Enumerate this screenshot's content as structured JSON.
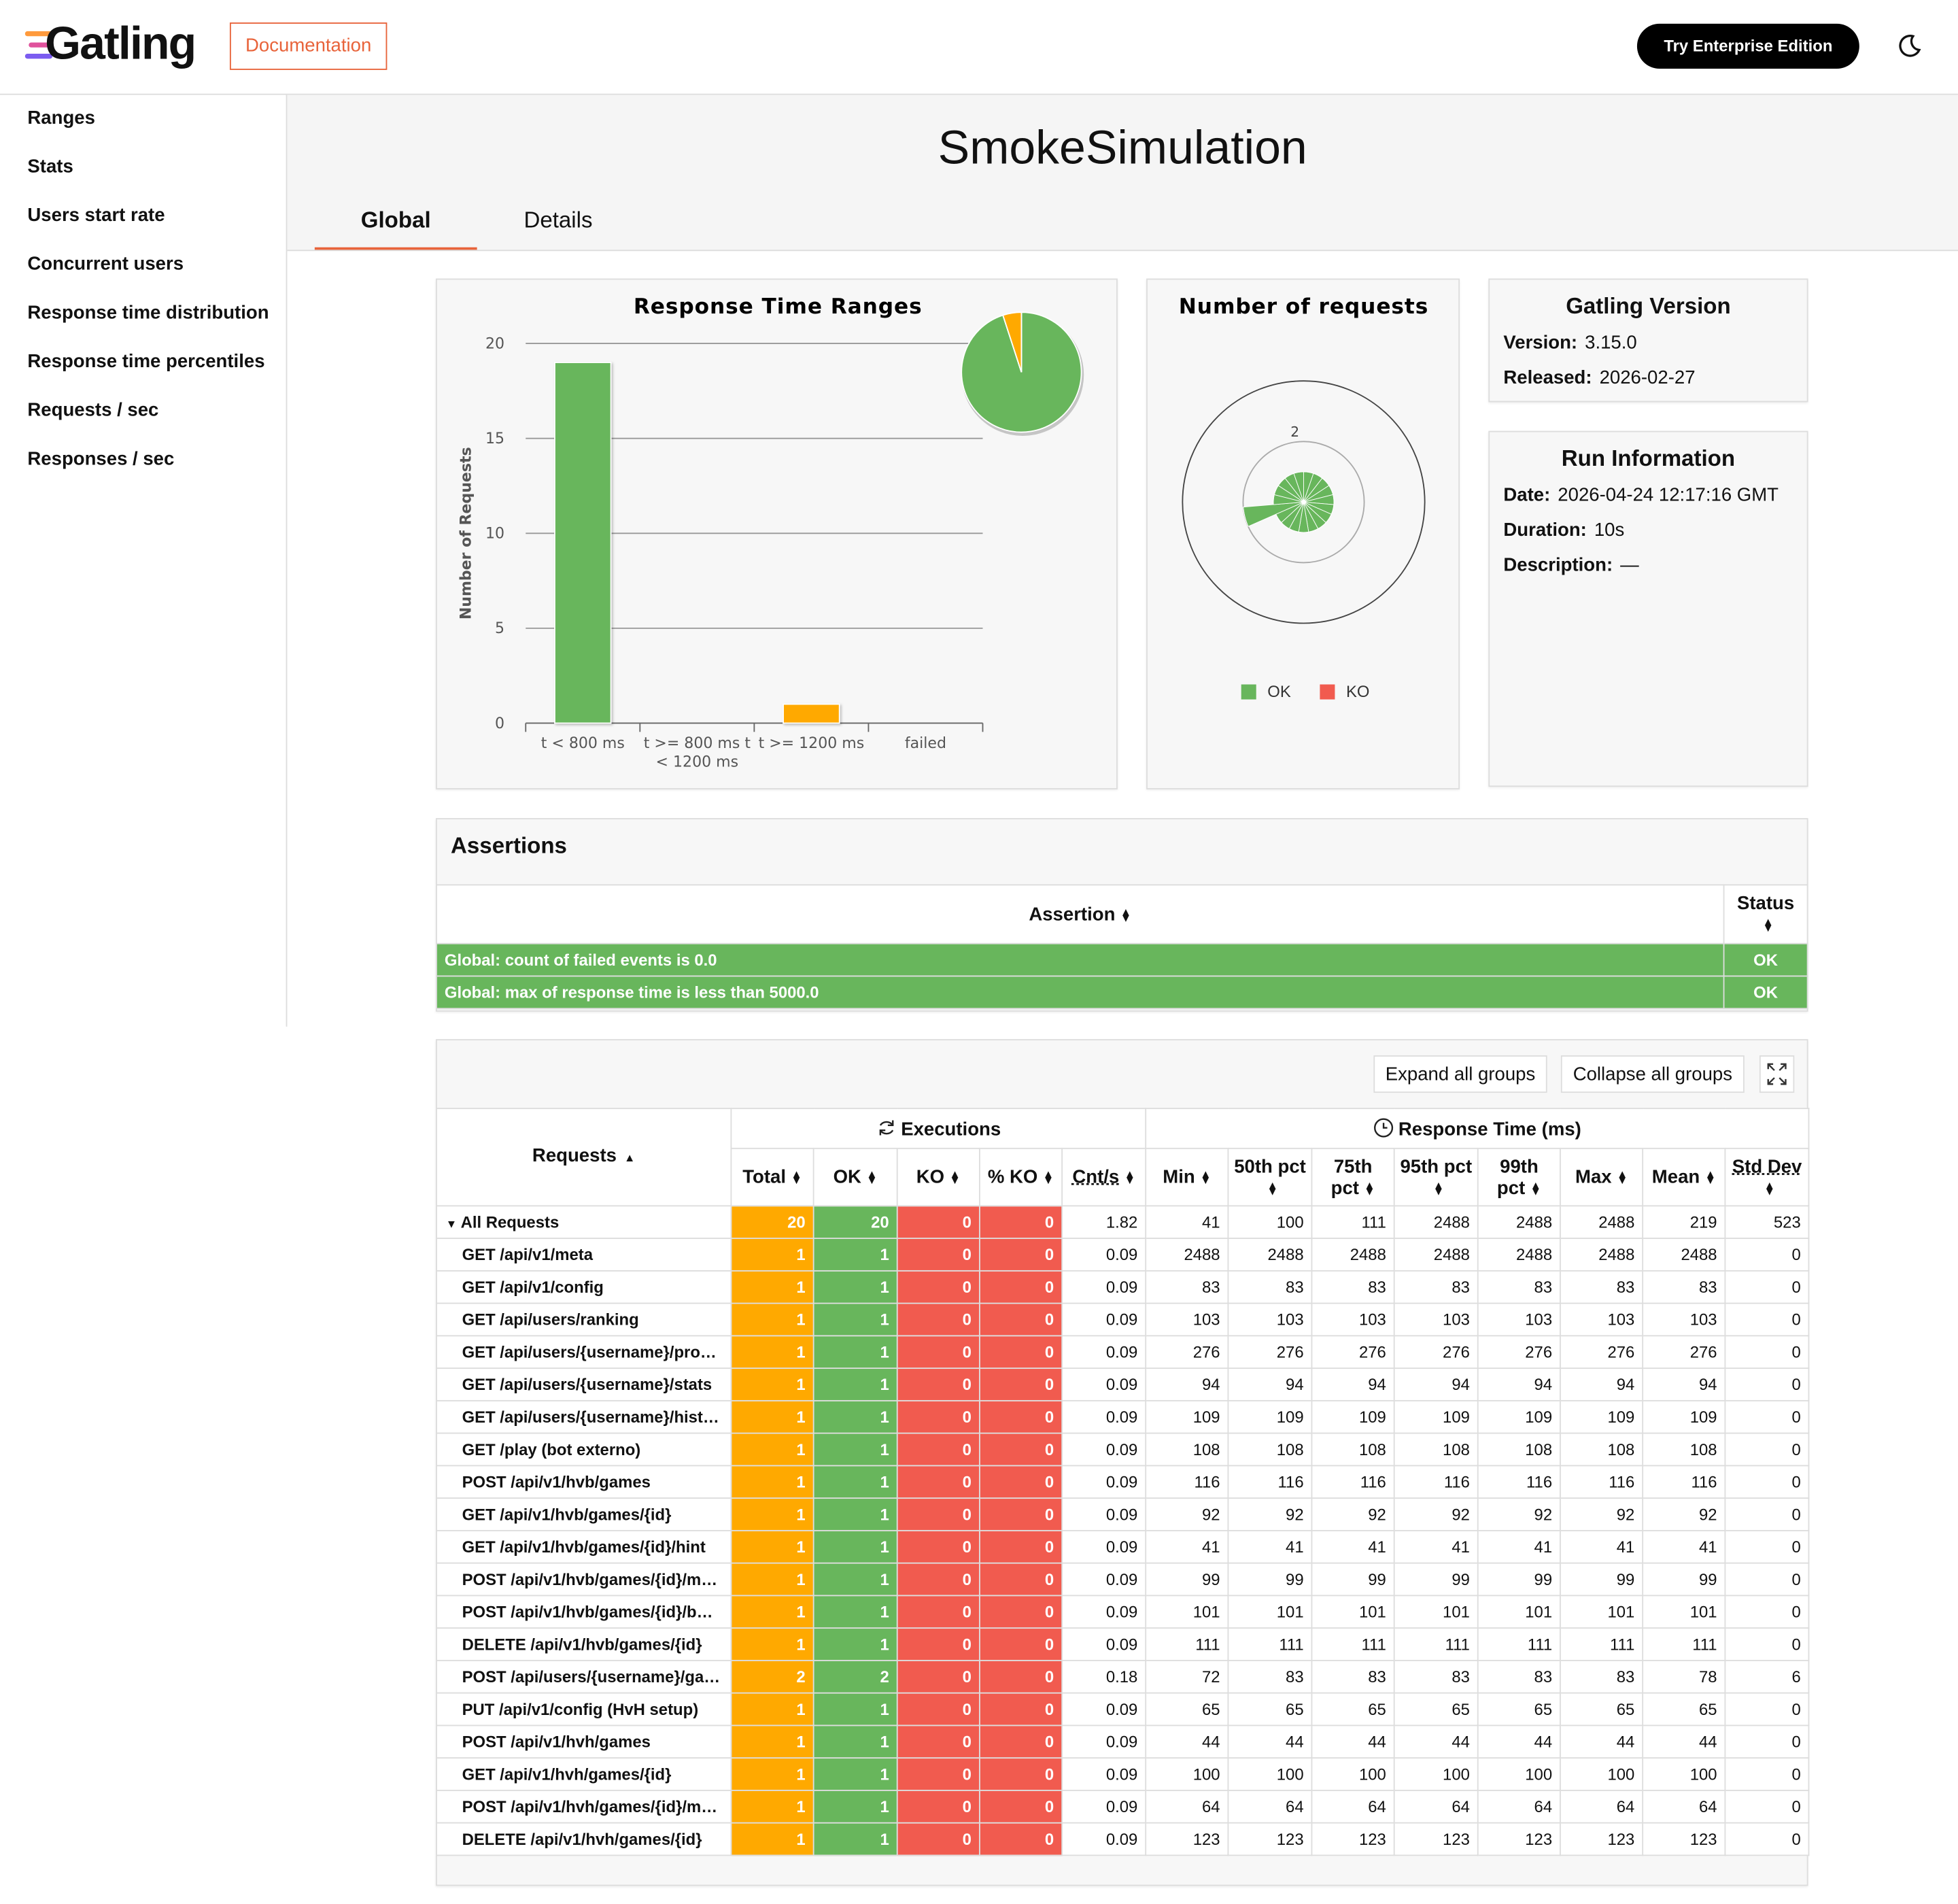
{
  "header": {
    "logo": "Gatling",
    "documentation": "Documentation",
    "enterprise": "Try Enterprise Edition"
  },
  "sidebar": [
    "Ranges",
    "Stats",
    "Users start rate",
    "Concurrent users",
    "Response time distribution",
    "Response time percentiles",
    "Requests / sec",
    "Responses / sec"
  ],
  "title": "SmokeSimulation",
  "tabs": [
    "Global",
    "Details"
  ],
  "chart_data": [
    {
      "type": "bar",
      "title": "Response Time Ranges",
      "y_label": "Number of Requests",
      "categories": [
        "t < 800 ms",
        "t >= 800 ms t < 1200 ms",
        "t >= 1200 ms",
        "failed"
      ],
      "values": [
        19,
        0,
        1,
        0
      ],
      "colors": [
        "#68b65c",
        "#ffdd00",
        "#ffa900",
        "#f15b4f"
      ],
      "ylim": [
        0,
        20
      ],
      "yticks": [
        0,
        5,
        10,
        15,
        20
      ],
      "grid": true,
      "inset_pie": true
    },
    {
      "type": "polar",
      "title": "Number of requests",
      "categories": [
        null,
        null,
        null,
        null,
        null,
        null,
        null,
        null,
        null,
        null,
        null,
        null,
        null,
        null,
        null,
        null,
        null,
        null,
        null
      ],
      "series": [
        {
          "name": "OK",
          "color": "#68b65c",
          "values": [
            1,
            1,
            1,
            1,
            1,
            1,
            1,
            1,
            1,
            1,
            1,
            1,
            1,
            2,
            1,
            1,
            1,
            1,
            1
          ]
        },
        {
          "name": "KO",
          "color": "#f15b4f",
          "values": [
            0,
            0,
            0,
            0,
            0,
            0,
            0,
            0,
            0,
            0,
            0,
            0,
            0,
            0,
            0,
            0,
            0,
            0,
            0
          ]
        }
      ],
      "rlim": [
        0,
        4
      ],
      "rticks": [
        0,
        2
      ]
    }
  ],
  "version_box": {
    "title": "Gatling Version",
    "rows": [
      [
        "Version:",
        "3.15.0"
      ],
      [
        "Released:",
        "2026-02-27"
      ]
    ]
  },
  "run_box": {
    "title": "Run Information",
    "rows": [
      [
        "Date:",
        "2026-04-24 12:17:16 GMT"
      ],
      [
        "Duration:",
        "10s"
      ],
      [
        "Description:",
        "—"
      ]
    ]
  },
  "assertions": {
    "title": "Assertions",
    "headers": [
      "Assertion",
      "Status"
    ],
    "rows": [
      [
        "Global: count of failed events is 0.0",
        "OK"
      ],
      [
        "Global: max of response time is less than 5000.0",
        "OK"
      ]
    ]
  },
  "stats": {
    "buttons": [
      "Expand all groups",
      "Collapse all groups"
    ],
    "first_header": "Requests",
    "groups": [
      "Executions",
      "Response Time (ms)"
    ],
    "columns": [
      "Total",
      "OK",
      "KO",
      "% KO",
      "Cnt/s",
      "Min",
      "50th pct",
      "75th pct",
      "95th pct",
      "99th pct",
      "Max",
      "Mean",
      "Std Dev"
    ],
    "rows": [
      {
        "name": "All Requests",
        "values": [
          20,
          20,
          0,
          0,
          1.82,
          41,
          100,
          111,
          2488,
          2488,
          2488,
          219,
          523
        ]
      },
      {
        "name": "GET /api/v1/meta",
        "values": [
          1,
          1,
          0,
          0,
          0.09,
          2488,
          2488,
          2488,
          2488,
          2488,
          2488,
          2488,
          0
        ]
      },
      {
        "name": "GET /api/v1/config",
        "values": [
          1,
          1,
          0,
          0,
          0.09,
          83,
          83,
          83,
          83,
          83,
          83,
          83,
          0
        ]
      },
      {
        "name": "GET /api/users/ranking",
        "values": [
          1,
          1,
          0,
          0,
          0.09,
          103,
          103,
          103,
          103,
          103,
          103,
          103,
          0
        ]
      },
      {
        "name": "GET /api/users/{username}/pro…",
        "values": [
          1,
          1,
          0,
          0,
          0.09,
          276,
          276,
          276,
          276,
          276,
          276,
          276,
          0
        ]
      },
      {
        "name": "GET /api/users/{username}/stats",
        "values": [
          1,
          1,
          0,
          0,
          0.09,
          94,
          94,
          94,
          94,
          94,
          94,
          94,
          0
        ]
      },
      {
        "name": "GET /api/users/{username}/hist…",
        "values": [
          1,
          1,
          0,
          0,
          0.09,
          109,
          109,
          109,
          109,
          109,
          109,
          109,
          0
        ]
      },
      {
        "name": "GET /play (bot externo)",
        "values": [
          1,
          1,
          0,
          0,
          0.09,
          108,
          108,
          108,
          108,
          108,
          108,
          108,
          0
        ]
      },
      {
        "name": "POST /api/v1/hvb/games",
        "values": [
          1,
          1,
          0,
          0,
          0.09,
          116,
          116,
          116,
          116,
          116,
          116,
          116,
          0
        ]
      },
      {
        "name": "GET /api/v1/hvb/games/{id}",
        "values": [
          1,
          1,
          0,
          0,
          0.09,
          92,
          92,
          92,
          92,
          92,
          92,
          92,
          0
        ]
      },
      {
        "name": "GET /api/v1/hvb/games/{id}/hint",
        "values": [
          1,
          1,
          0,
          0,
          0.09,
          41,
          41,
          41,
          41,
          41,
          41,
          41,
          0
        ]
      },
      {
        "name": "POST /api/v1/hvb/games/{id}/m…",
        "values": [
          1,
          1,
          0,
          0,
          0.09,
          99,
          99,
          99,
          99,
          99,
          99,
          99,
          0
        ]
      },
      {
        "name": "POST /api/v1/hvb/games/{id}/b…",
        "values": [
          1,
          1,
          0,
          0,
          0.09,
          101,
          101,
          101,
          101,
          101,
          101,
          101,
          0
        ]
      },
      {
        "name": "DELETE /api/v1/hvb/games/{id}",
        "values": [
          1,
          1,
          0,
          0,
          0.09,
          111,
          111,
          111,
          111,
          111,
          111,
          111,
          0
        ]
      },
      {
        "name": "POST /api/users/{username}/ga…",
        "values": [
          2,
          2,
          0,
          0,
          0.18,
          72,
          83,
          83,
          83,
          83,
          83,
          78,
          6
        ]
      },
      {
        "name": "PUT /api/v1/config (HvH setup)",
        "values": [
          1,
          1,
          0,
          0,
          0.09,
          65,
          65,
          65,
          65,
          65,
          65,
          65,
          0
        ]
      },
      {
        "name": "POST /api/v1/hvh/games",
        "values": [
          1,
          1,
          0,
          0,
          0.09,
          44,
          44,
          44,
          44,
          44,
          44,
          44,
          0
        ]
      },
      {
        "name": "GET /api/v1/hvh/games/{id}",
        "values": [
          1,
          1,
          0,
          0,
          0.09,
          100,
          100,
          100,
          100,
          100,
          100,
          100,
          0
        ]
      },
      {
        "name": "POST /api/v1/hvh/games/{id}/m…",
        "values": [
          1,
          1,
          0,
          0,
          0.09,
          64,
          64,
          64,
          64,
          64,
          64,
          64,
          0
        ]
      },
      {
        "name": "DELETE /api/v1/hvh/games/{id}",
        "values": [
          1,
          1,
          0,
          0,
          0.09,
          123,
          123,
          123,
          123,
          123,
          123,
          123,
          0
        ]
      }
    ]
  }
}
